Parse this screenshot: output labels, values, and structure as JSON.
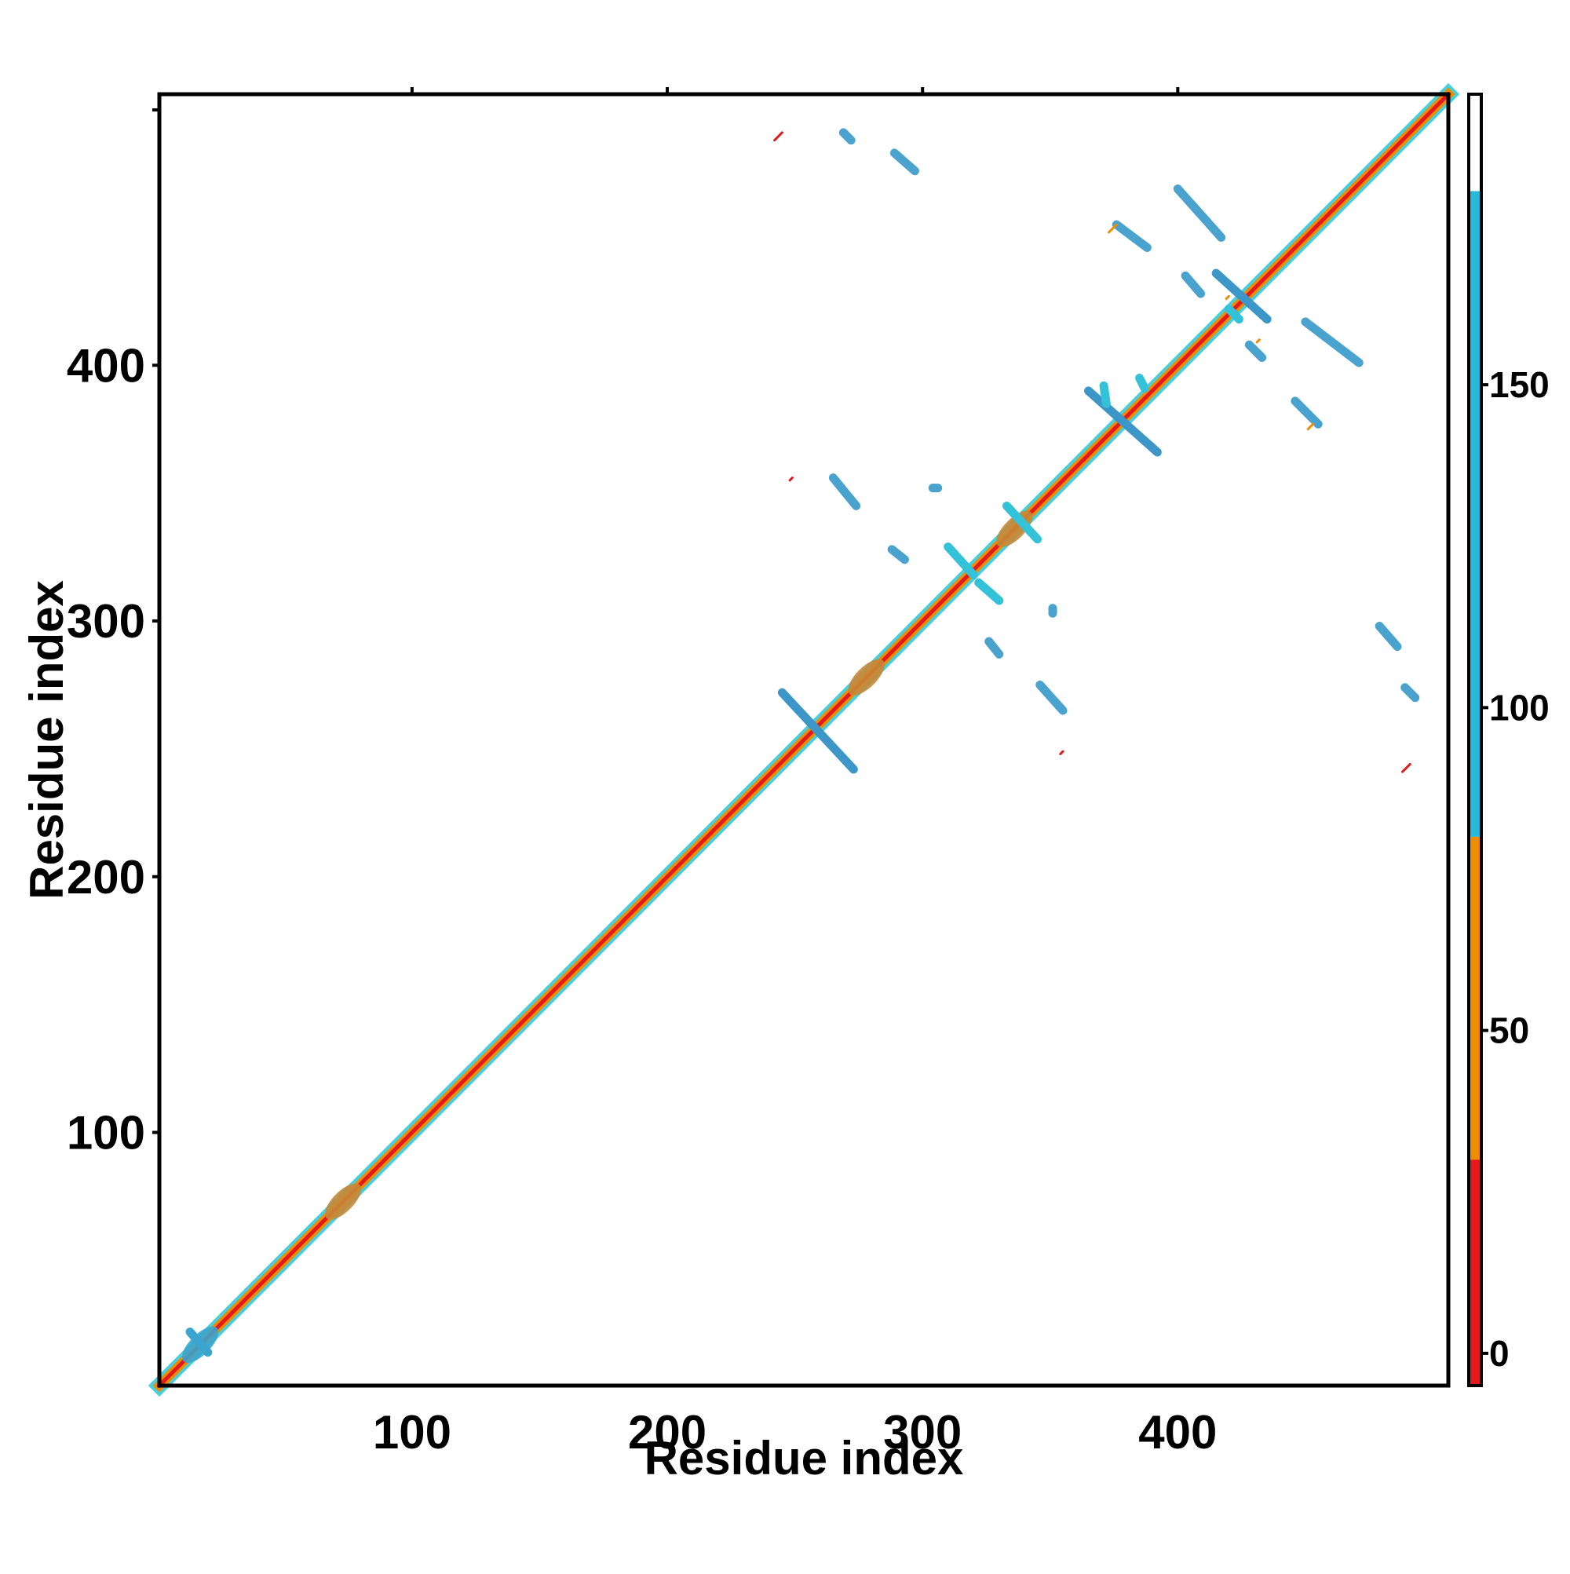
{
  "chart_data": {
    "type": "heatmap",
    "title": "",
    "xlabel": "Residue index",
    "ylabel": "Residue index",
    "xlim": [
      1,
      506
    ],
    "ylim": [
      1,
      506
    ],
    "x_ticks": [
      100,
      200,
      300,
      400
    ],
    "y_ticks": [
      100,
      200,
      300,
      400
    ],
    "grid": false,
    "colorbar": {
      "ticks": [
        0,
        50,
        100,
        150
      ],
      "range": [
        -5,
        195
      ],
      "segments": [
        {
          "from": -5,
          "to": 30,
          "color": "#e31a1c"
        },
        {
          "from": 30,
          "to": 80,
          "color": "#f08c00"
        },
        {
          "from": 80,
          "to": 180,
          "color": "#29b8d9"
        },
        {
          "from": 180,
          "to": 195,
          "color": "#ffffff"
        }
      ]
    },
    "diagonal": {
      "from": 1,
      "to": 506,
      "core_color": "#e31a1c",
      "band_color": "#f08c00",
      "edge_color": "#29c6d8"
    },
    "diagonal_blobs": [
      {
        "at": 17,
        "color": "#3aa6d0"
      },
      {
        "at": 73,
        "color": "#c58a3a"
      },
      {
        "at": 278,
        "color": "#c58a3a"
      },
      {
        "at": 336,
        "color": "#c58a3a"
      }
    ],
    "segments": [
      {
        "x1": 245,
        "y1": 272,
        "x2": 273,
        "y2": 242,
        "color": "#3c96c8"
      },
      {
        "x1": 365,
        "y1": 390,
        "x2": 392,
        "y2": 366,
        "color": "#3c96c8"
      },
      {
        "x1": 415,
        "y1": 436,
        "x2": 435,
        "y2": 418,
        "color": "#3c96c8"
      },
      {
        "x1": 13,
        "y1": 22,
        "x2": 20,
        "y2": 14,
        "color": "#3aa6d0"
      },
      {
        "x1": 269,
        "y1": 491,
        "x2": 272,
        "y2": 488,
        "color": "#4aa3cf"
      },
      {
        "x1": 289,
        "y1": 483,
        "x2": 297,
        "y2": 476,
        "color": "#4aa3cf"
      },
      {
        "x1": 400,
        "y1": 469,
        "x2": 417,
        "y2": 450,
        "color": "#4aa3cf"
      },
      {
        "x1": 376,
        "y1": 455,
        "x2": 388,
        "y2": 446,
        "color": "#4aa3cf"
      },
      {
        "x1": 403,
        "y1": 435,
        "x2": 409,
        "y2": 428,
        "color": "#4aa3cf"
      },
      {
        "x1": 450,
        "y1": 417,
        "x2": 471,
        "y2": 401,
        "color": "#4aa3cf"
      },
      {
        "x1": 428,
        "y1": 408,
        "x2": 433,
        "y2": 403,
        "color": "#4aa3cf"
      },
      {
        "x1": 446,
        "y1": 386,
        "x2": 455,
        "y2": 377,
        "color": "#4aa3cf"
      },
      {
        "x1": 265,
        "y1": 356,
        "x2": 274,
        "y2": 345,
        "color": "#4aa3cf"
      },
      {
        "x1": 288,
        "y1": 328,
        "x2": 293,
        "y2": 324,
        "color": "#4aa3cf"
      },
      {
        "x1": 310,
        "y1": 329,
        "x2": 320,
        "y2": 318,
        "color": "#33c2d8"
      },
      {
        "x1": 322,
        "y1": 315,
        "x2": 330,
        "y2": 308,
        "color": "#33c2d8"
      },
      {
        "x1": 326,
        "y1": 292,
        "x2": 330,
        "y2": 287,
        "color": "#4aa3cf"
      },
      {
        "x1": 346,
        "y1": 275,
        "x2": 355,
        "y2": 265,
        "color": "#4aa3cf"
      },
      {
        "x1": 479,
        "y1": 298,
        "x2": 486,
        "y2": 290,
        "color": "#4aa3cf"
      },
      {
        "x1": 489,
        "y1": 274,
        "x2": 493,
        "y2": 270,
        "color": "#4aa3cf"
      },
      {
        "x1": 371,
        "y1": 392,
        "x2": 372,
        "y2": 385,
        "color": "#33c2d8"
      },
      {
        "x1": 385,
        "y1": 395,
        "x2": 387,
        "y2": 391,
        "color": "#33c2d8"
      },
      {
        "x1": 333,
        "y1": 345,
        "x2": 345,
        "y2": 332,
        "color": "#33c2d8"
      },
      {
        "x1": 420,
        "y1": 422,
        "x2": 424,
        "y2": 418,
        "color": "#33c2d8"
      },
      {
        "x1": 304,
        "y1": 352,
        "x2": 306,
        "y2": 352,
        "color": "#4aa3cf"
      },
      {
        "x1": 351,
        "y1": 305,
        "x2": 351,
        "y2": 303,
        "color": "#4aa3cf"
      },
      {
        "x1": 242,
        "y1": 488,
        "x2": 245,
        "y2": 491,
        "color": "#e31a1c"
      },
      {
        "x1": 248,
        "y1": 355,
        "x2": 249,
        "y2": 356,
        "color": "#e31a1c"
      },
      {
        "x1": 373,
        "y1": 452,
        "x2": 376,
        "y2": 455,
        "color": "#f08c00"
      },
      {
        "x1": 354,
        "y1": 248,
        "x2": 355,
        "y2": 249,
        "color": "#e31a1c"
      },
      {
        "x1": 488,
        "y1": 241,
        "x2": 491,
        "y2": 244,
        "color": "#e31a1c"
      },
      {
        "x1": 451,
        "y1": 375,
        "x2": 453,
        "y2": 377,
        "color": "#f08c00"
      },
      {
        "x1": 419,
        "y1": 426,
        "x2": 420,
        "y2": 427,
        "color": "#f08c00"
      },
      {
        "x1": 431,
        "y1": 409,
        "x2": 432,
        "y2": 410,
        "color": "#f08c00"
      }
    ]
  }
}
